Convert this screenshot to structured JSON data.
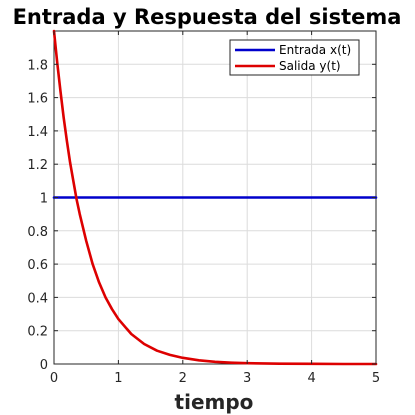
{
  "chart_data": {
    "type": "line",
    "title": "Entrada y Respuesta del sistema",
    "xlabel": "tiempo",
    "ylabel": "",
    "xlim": [
      0,
      5
    ],
    "ylim": [
      0,
      2
    ],
    "xticks": [
      0,
      1,
      2,
      3,
      4,
      5
    ],
    "yticks": [
      0,
      0.2,
      0.4,
      0.6,
      0.8,
      1,
      1.2,
      1.4,
      1.6,
      1.8
    ],
    "xtick_labels": [
      "0",
      "1",
      "2",
      "3",
      "4",
      "5"
    ],
    "ytick_labels": [
      "0",
      "0.2",
      "0.4",
      "0.6",
      "0.8",
      "1",
      "1.2",
      "1.4",
      "1.6",
      "1.8"
    ],
    "grid": true,
    "legend_position": "top-right",
    "series": [
      {
        "name": "Entrada x(t)",
        "color": "#0000cc",
        "x": [
          0,
          5
        ],
        "y": [
          1,
          1
        ]
      },
      {
        "name": "Salida y(t)",
        "color": "#dd0000",
        "x": [
          0,
          0.05,
          0.1,
          0.15,
          0.2,
          0.25,
          0.3,
          0.35,
          0.4,
          0.5,
          0.6,
          0.7,
          0.8,
          0.9,
          1.0,
          1.2,
          1.4,
          1.6,
          1.8,
          2.0,
          2.25,
          2.5,
          2.75,
          3.0,
          3.5,
          4.0,
          4.5,
          5.0
        ],
        "y": [
          2.0,
          1.81,
          1.64,
          1.48,
          1.34,
          1.21,
          1.1,
          0.99,
          0.9,
          0.74,
          0.6,
          0.49,
          0.4,
          0.33,
          0.27,
          0.18,
          0.12,
          0.08,
          0.055,
          0.037,
          0.022,
          0.013,
          0.008,
          0.005,
          0.002,
          0.001,
          0.0,
          0.0
        ]
      }
    ]
  }
}
